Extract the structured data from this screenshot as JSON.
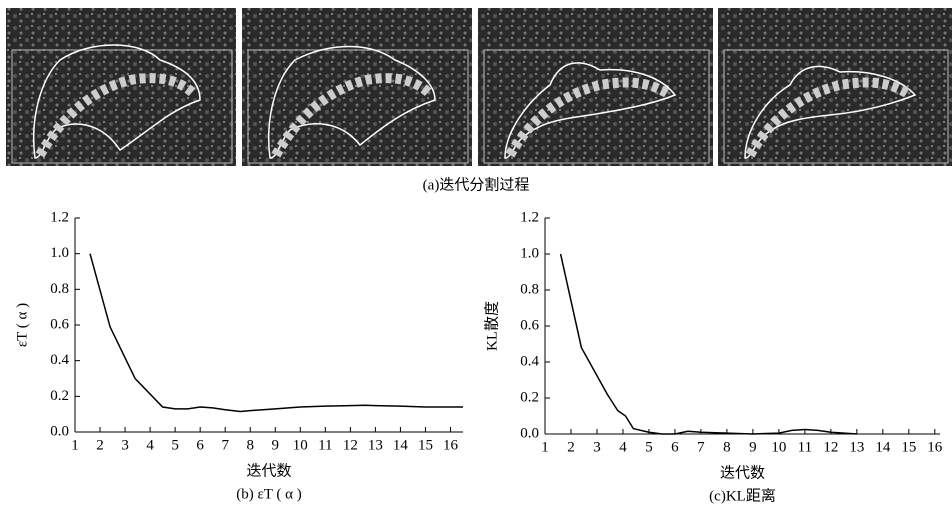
{
  "images_caption": "(a)迭代分割过程",
  "chart_data": [
    {
      "type": "line",
      "ylabel": "εT ( α )",
      "xlabel": "迭代数",
      "caption": "(b) εT ( α )",
      "color": "#000000",
      "x": [
        1.6,
        2.4,
        3.4,
        4.5,
        5,
        5.5,
        6,
        6.5,
        7,
        7.6,
        8,
        9,
        10,
        11,
        12,
        12.6,
        13,
        14,
        15,
        16.5
      ],
      "values": [
        1.0,
        0.59,
        0.3,
        0.14,
        0.13,
        0.13,
        0.14,
        0.135,
        0.125,
        0.115,
        0.12,
        0.13,
        0.14,
        0.145,
        0.148,
        0.15,
        0.148,
        0.145,
        0.14,
        0.14
      ],
      "xlim": [
        1,
        16.5
      ],
      "xticks": [
        1,
        2,
        3,
        4,
        5,
        6,
        7,
        8,
        9,
        10,
        11,
        12,
        13,
        14,
        15,
        16
      ],
      "ylim": [
        0,
        1.2
      ],
      "yticks": [
        {
          "value": 0,
          "label": "0.0"
        },
        0.2,
        0.4,
        0.6,
        0.8,
        {
          "value": 1,
          "label": "1.0"
        },
        1.2
      ]
    },
    {
      "type": "line",
      "ylabel": "KL散度",
      "xlabel": "迭代数",
      "caption": "(c)KL距离",
      "color": "#000000",
      "x": [
        1.6,
        2.4,
        3.4,
        3.8,
        4.1,
        4.4,
        5,
        5.5,
        6,
        6.5,
        7,
        8,
        9,
        10,
        10.5,
        11,
        11.5,
        12,
        13
      ],
      "values": [
        1.0,
        0.48,
        0.22,
        0.13,
        0.1,
        0.03,
        0.01,
        0,
        0,
        0.015,
        0.01,
        0.005,
        0,
        0.005,
        0.02,
        0.025,
        0.02,
        0.01,
        0
      ],
      "xlim": [
        1,
        16.2
      ],
      "xticks": [
        1,
        2,
        3,
        4,
        5,
        6,
        7,
        8,
        9,
        10,
        11,
        12,
        13,
        14,
        15,
        16
      ],
      "ylim": [
        0,
        1.2
      ],
      "yticks": [
        {
          "value": 0,
          "label": "0.0"
        },
        0.2,
        0.4,
        0.6,
        0.8,
        {
          "value": 1,
          "label": "1.0"
        },
        1.2
      ]
    }
  ]
}
